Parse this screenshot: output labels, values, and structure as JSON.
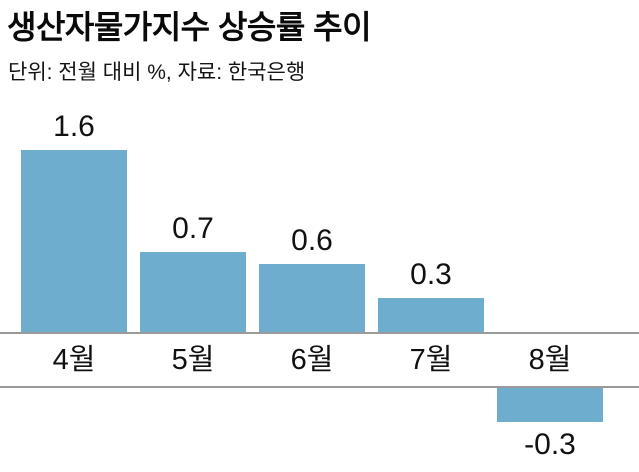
{
  "header": {
    "title": "생산자물가지수 상승률 추이",
    "subtitle": "단위: 전월 대비 %, 자료: 한국은행"
  },
  "chart_data": {
    "type": "bar",
    "title": "생산자물가지수 상승률 추이",
    "subtitle": "단위: 전월 대비 %, 자료: 한국은행",
    "unit_label": "전월 대비 %",
    "source": "한국은행",
    "categories": [
      "4월",
      "5월",
      "6월",
      "7월",
      "8월"
    ],
    "values": [
      1.6,
      0.7,
      0.6,
      0.3,
      -0.3
    ],
    "value_labels": [
      "1.6",
      "0.7",
      "0.6",
      "0.3",
      "-0.3"
    ],
    "xlabel": "",
    "ylabel": "전월 대비 %",
    "ylim": [
      -0.5,
      1.8
    ],
    "grid": false,
    "legend": false,
    "bar_color": "#6fadcf",
    "axis_line_color": "#9a9a9a",
    "text_color": "#111111",
    "background": "#ffffff"
  }
}
